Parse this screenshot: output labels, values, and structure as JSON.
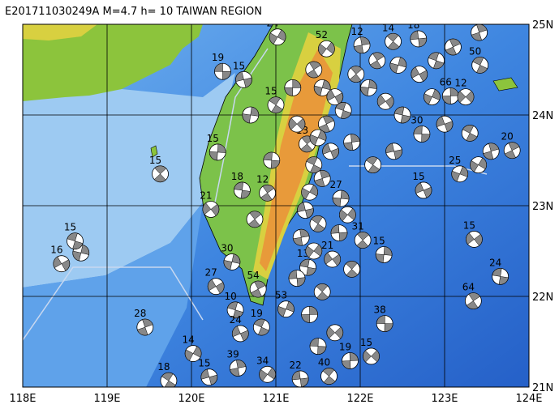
{
  "header": {
    "title": "E201711030249A  M=4.7  h= 10  TAIWAN REGION"
  },
  "map": {
    "lonlim": [
      118,
      124
    ],
    "latlim": [
      21,
      25
    ],
    "xticks": [
      {
        "value": 118,
        "label": "118E"
      },
      {
        "value": 119,
        "label": "119E"
      },
      {
        "value": 120,
        "label": "120E"
      },
      {
        "value": 121,
        "label": "121E"
      },
      {
        "value": 122,
        "label": "122E"
      },
      {
        "value": 123,
        "label": "123E"
      },
      {
        "value": 124,
        "label": "124E"
      }
    ],
    "yticks": [
      {
        "value": 25,
        "label": "25N"
      },
      {
        "value": 24,
        "label": "24N"
      },
      {
        "value": 23,
        "label": "23N"
      },
      {
        "value": 22,
        "label": "22N"
      },
      {
        "value": 21,
        "label": "21N"
      }
    ],
    "events": [
      [
        120.37,
        24.48,
        19
      ],
      [
        119.63,
        23.35,
        15
      ],
      [
        120.31,
        23.59,
        15
      ],
      [
        120.23,
        22.96,
        21
      ],
      [
        120.6,
        23.17,
        18
      ],
      [
        120.9,
        23.14,
        12
      ],
      [
        120.48,
        22.38,
        30
      ],
      [
        120.29,
        22.11,
        27
      ],
      [
        120.52,
        21.85,
        10
      ],
      [
        120.79,
        22.08,
        54
      ],
      [
        121.12,
        21.86,
        53
      ],
      [
        120.58,
        21.59,
        24
      ],
      [
        120.83,
        21.66,
        19
      ],
      [
        119.45,
        21.66,
        28
      ],
      [
        120.02,
        21.37,
        14
      ],
      [
        120.21,
        21.11,
        15
      ],
      [
        119.73,
        21.07,
        18
      ],
      [
        120.55,
        21.21,
        39
      ],
      [
        120.9,
        21.14,
        34
      ],
      [
        121.29,
        21.09,
        22
      ],
      [
        121.63,
        21.12,
        40
      ],
      [
        121.88,
        21.29,
        19
      ],
      [
        122.13,
        21.34,
        15
      ],
      [
        122.29,
        21.7,
        38
      ],
      [
        122.03,
        22.62,
        31
      ],
      [
        122.28,
        22.46,
        15
      ],
      [
        123.35,
        22.63,
        15
      ],
      [
        123.66,
        22.22,
        24
      ],
      [
        123.34,
        21.95,
        64
      ],
      [
        118.69,
        22.48,
        35
      ],
      [
        118.46,
        22.36,
        16
      ],
      [
        118.62,
        22.61,
        15
      ],
      [
        123.8,
        23.61,
        20
      ],
      [
        123.18,
        23.35,
        25
      ],
      [
        122.75,
        23.17,
        15
      ],
      [
        123.42,
        24.55,
        50
      ],
      [
        123.41,
        24.91,
        15
      ],
      [
        121.02,
        24.86,
        24
      ],
      [
        120.62,
        24.39,
        15
      ],
      [
        121.0,
        24.11,
        15
      ],
      [
        122.02,
        24.77,
        12
      ],
      [
        121.6,
        24.73,
        52
      ],
      [
        122.69,
        24.84,
        18
      ],
      [
        122.39,
        24.81,
        14
      ],
      [
        123.07,
        24.21,
        66
      ],
      [
        123.25,
        24.2,
        12
      ],
      [
        122.73,
        23.79,
        30
      ],
      [
        121.37,
        23.68,
        13
      ],
      [
        121.77,
        23.08,
        27
      ],
      [
        121.67,
        22.41,
        21
      ],
      [
        121.38,
        22.32,
        13
      ],
      [
        121.45,
        24.5,
        null
      ],
      [
        121.55,
        24.3,
        null
      ],
      [
        121.7,
        24.2,
        null
      ],
      [
        121.8,
        24.05,
        null
      ],
      [
        121.6,
        23.9,
        null
      ],
      [
        121.5,
        23.75,
        null
      ],
      [
        121.65,
        23.6,
        null
      ],
      [
        121.45,
        23.45,
        null
      ],
      [
        121.55,
        23.3,
        null
      ],
      [
        121.4,
        23.15,
        null
      ],
      [
        121.35,
        22.95,
        null
      ],
      [
        121.5,
        22.8,
        null
      ],
      [
        121.3,
        22.65,
        null
      ],
      [
        121.45,
        22.5,
        null
      ],
      [
        121.25,
        22.2,
        null
      ],
      [
        121.55,
        22.05,
        null
      ],
      [
        121.4,
        21.8,
        null
      ],
      [
        121.7,
        21.6,
        null
      ],
      [
        121.5,
        21.45,
        null
      ],
      [
        121.95,
        24.45,
        null
      ],
      [
        122.1,
        24.3,
        null
      ],
      [
        122.3,
        24.15,
        null
      ],
      [
        122.5,
        24.0,
        null
      ],
      [
        122.2,
        24.6,
        null
      ],
      [
        122.45,
        24.55,
        null
      ],
      [
        122.7,
        24.45,
        null
      ],
      [
        122.9,
        24.6,
        null
      ],
      [
        123.1,
        24.75,
        null
      ],
      [
        122.85,
        24.2,
        null
      ],
      [
        123.0,
        23.9,
        null
      ],
      [
        123.3,
        23.8,
        null
      ],
      [
        123.55,
        23.6,
        null
      ],
      [
        123.4,
        23.45,
        null
      ],
      [
        122.4,
        23.6,
        null
      ],
      [
        122.15,
        23.45,
        null
      ],
      [
        121.9,
        23.7,
        null
      ],
      [
        121.85,
        22.9,
        null
      ],
      [
        121.75,
        22.7,
        null
      ],
      [
        121.9,
        22.3,
        null
      ],
      [
        121.2,
        24.3,
        null
      ],
      [
        121.25,
        23.9,
        null
      ],
      [
        120.95,
        23.5,
        null
      ],
      [
        120.75,
        22.85,
        null
      ],
      [
        120.7,
        24.0,
        null
      ]
    ]
  }
}
